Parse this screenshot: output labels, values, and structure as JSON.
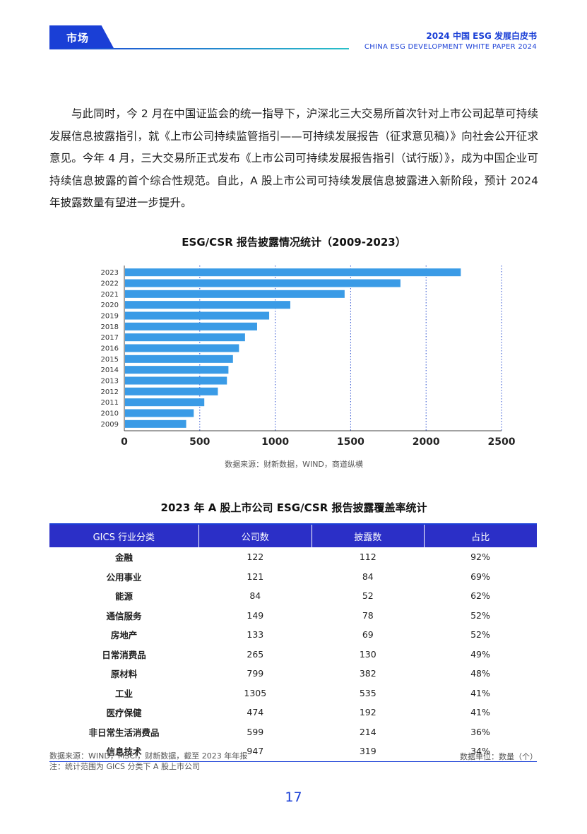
{
  "header": {
    "section_tab": "市场",
    "doc_title": "2024 中国 ESG 发展白皮书",
    "doc_subtitle": "CHINA ESG DEVELOPMENT  WHITE PAPER 2024"
  },
  "body": {
    "paragraph": "与此同时，今 2 月在中国证监会的统一指导下，沪深北三大交易所首次针对上市公司起草可持续发展信息披露指引，就《上市公司持续监管指引——可持续发展报告（征求意见稿）》向社会公开征求意见。今年 4 月，三大交易所正式发布《上市公司可持续发展报告指引（试行版）》，成为中国企业可持续信息披露的首个综合性规范。自此，A 股上市公司可持续发展信息披露进入新阶段，预计 2024 年披露数量有望进一步提升。"
  },
  "chart_data": {
    "type": "bar",
    "orientation": "horizontal",
    "title": "ESG/CSR 报告披露情况统计（2009-2023）",
    "categories": [
      "2023",
      "2022",
      "2021",
      "2020",
      "2019",
      "2018",
      "2017",
      "2016",
      "2015",
      "2014",
      "2013",
      "2012",
      "2011",
      "2010",
      "2009"
    ],
    "values": [
      2230,
      1830,
      1460,
      1100,
      960,
      880,
      800,
      760,
      720,
      690,
      680,
      620,
      530,
      460,
      410
    ],
    "xlim": [
      0,
      2500
    ],
    "xticks": [
      "0",
      "500",
      "1000",
      "1500",
      "2000",
      "2500"
    ],
    "grid": "vertical dotted",
    "bar_color": "#3a9be6",
    "source": "数据来源：财新数据，WIND，商道纵横"
  },
  "table": {
    "title": "2023 年 A 股上市公司 ESG/CSR 报告披露覆盖率统计",
    "headers": [
      "GICS 行业分类",
      "公司数",
      "披露数",
      "占比"
    ],
    "rows": [
      [
        "金融",
        "122",
        "112",
        "92%"
      ],
      [
        "公用事业",
        "121",
        "84",
        "69%"
      ],
      [
        "能源",
        "84",
        "52",
        "62%"
      ],
      [
        "通信服务",
        "149",
        "78",
        "52%"
      ],
      [
        "房地产",
        "133",
        "69",
        "52%"
      ],
      [
        "日常消费品",
        "265",
        "130",
        "49%"
      ],
      [
        "原材料",
        "799",
        "382",
        "48%"
      ],
      [
        "工业",
        "1305",
        "535",
        "41%"
      ],
      [
        "医疗保健",
        "474",
        "192",
        "41%"
      ],
      [
        "非日常生活消费品",
        "599",
        "214",
        "36%"
      ],
      [
        "信息技术",
        "947",
        "319",
        "34%"
      ]
    ],
    "source_note": "数据来源：WIND，MSCI，财新数据，截至 2023 年年报",
    "scope_note": "注：统计范围为 GICS 分类下 A 股上市公司",
    "unit_note": "数据单位：数量（个）"
  },
  "footer": {
    "page_number": "17"
  },
  "colors": {
    "brand_blue": "#1a3fd6",
    "table_header": "#2b2fc7",
    "bar": "#3a9be6"
  }
}
